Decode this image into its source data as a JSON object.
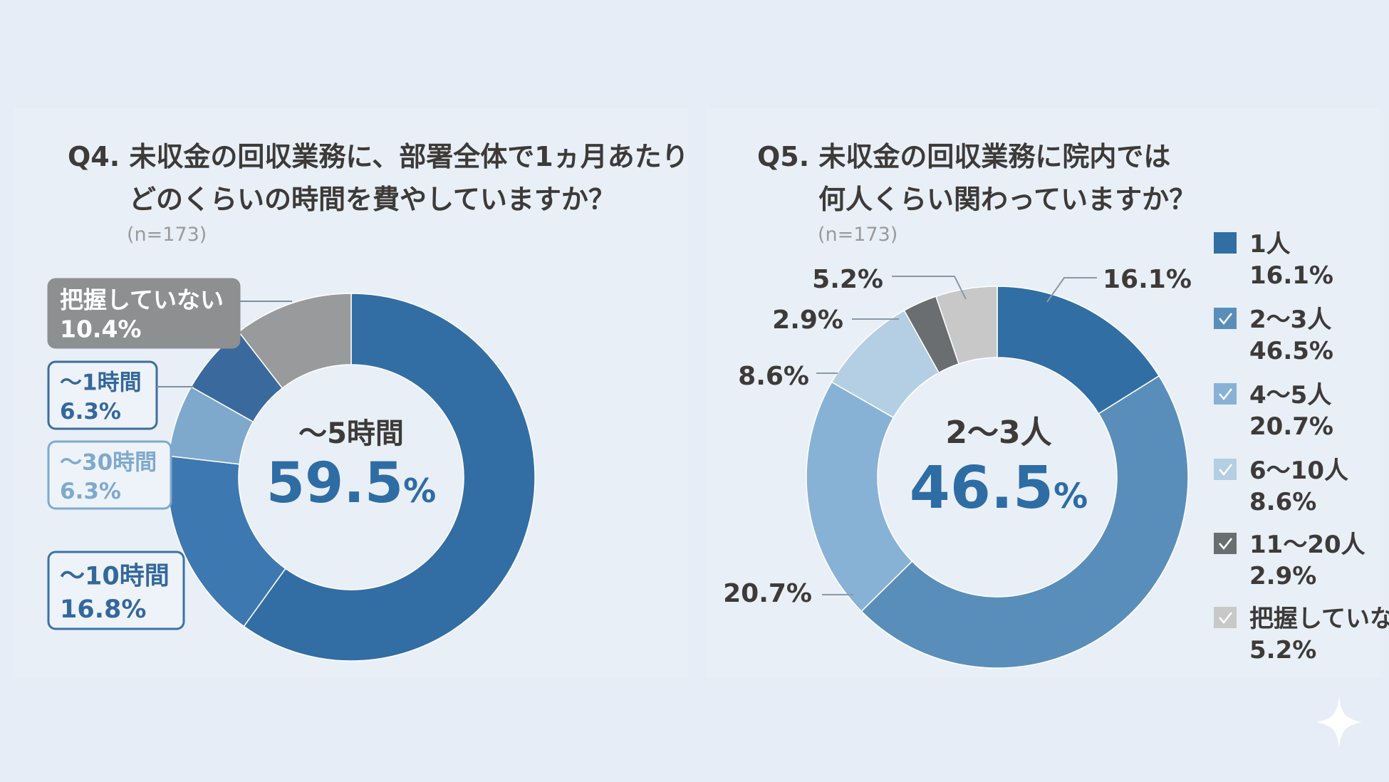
{
  "q4": {
    "title_line1": "Q4. 未収金の回収業務に、部署全体で1ヵ月あたり",
    "title_line2": "どのくらいの時間を費やしていますか？",
    "n": "(n=173)",
    "center_label": "〜5時間",
    "center_value": "59.5",
    "center_unit": "%"
  },
  "q5": {
    "title_line1": "Q5. 未収金の回収業務に院内では",
    "title_line2": "何人くらい関わっていますか？",
    "n": "(n=173)",
    "center_label": "2〜3人",
    "center_value": "46.5",
    "center_unit": "%"
  },
  "chart_data": [
    {
      "type": "pie",
      "title": "Q4. 未収金の回収業務に、部署全体で1ヵ月あたりどのくらいの時間を費やしていますか？",
      "categories": [
        "〜5時間",
        "〜10時間",
        "〜30時間",
        "〜1時間",
        "把握していない"
      ],
      "values": [
        59.5,
        16.8,
        6.3,
        6.3,
        10.4
      ],
      "labels": [
        "59.5%",
        "16.8%",
        "6.3%",
        "6.3%",
        "10.4%"
      ],
      "colors": [
        "#326ea4",
        "#3e78b0",
        "#7ea9cd",
        "#3a6a9d",
        "#999a9b"
      ],
      "donut": true
    },
    {
      "type": "pie",
      "title": "Q5. 未収金の回収業務に院内では何人くらい関わっていますか？",
      "categories": [
        "1人",
        "2〜3人",
        "4〜5人",
        "6〜10人",
        "11〜20人",
        "把握していない"
      ],
      "values": [
        16.1,
        46.5,
        20.7,
        8.6,
        2.9,
        5.2
      ],
      "labels": [
        "16.1%",
        "46.5%",
        "20.7%",
        "8.6%",
        "2.9%",
        "5.2%"
      ],
      "colors": [
        "#316ea4",
        "#5a8eba",
        "#88b2d5",
        "#b4cfe3",
        "#6b6e70",
        "#c8c8c8"
      ],
      "donut": true,
      "legend_placement": "right"
    }
  ]
}
